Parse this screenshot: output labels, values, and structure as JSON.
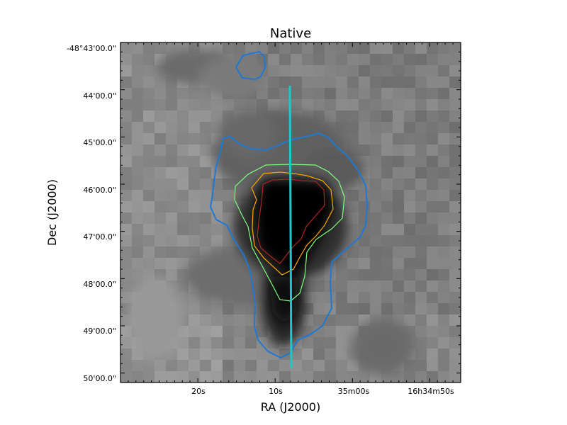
{
  "figure": {
    "title": "Native",
    "xlabel": "RA (J2000)",
    "ylabel": "Dec (J2000)",
    "x_ticks": [
      "20s",
      "10s",
      "35m00s",
      "16h34m50s"
    ],
    "y_ticks": [
      "-48°43'00.0\"",
      "44'00.0\"",
      "45'00.0\"",
      "46'00.0\"",
      "47'00.0\"",
      "48'00.0\"",
      "49'00.0\"",
      "50'00.0\""
    ]
  },
  "colors": {
    "contour_outer": "#1f78d1",
    "contour_green": "#7fff7f",
    "contour_orange": "#ffa500",
    "contour_red": "#b22222",
    "cut_line": "#1fc8c8"
  }
}
